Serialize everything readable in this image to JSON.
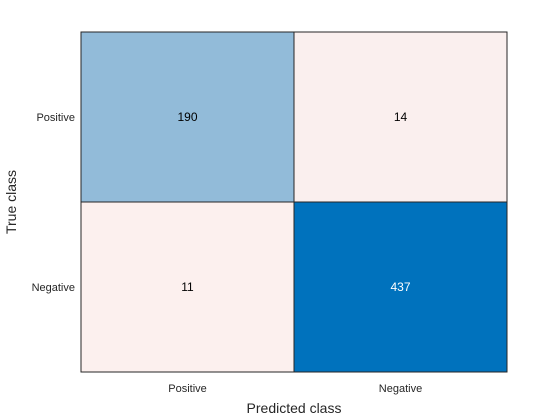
{
  "chart_data": {
    "type": "heatmap",
    "title": "",
    "xlabel": "Predicted class",
    "ylabel": "True class",
    "x_categories": [
      "Positive",
      "Negative"
    ],
    "y_categories": [
      "Positive",
      "Negative"
    ],
    "values": [
      [
        190,
        14
      ],
      [
        11,
        437
      ]
    ],
    "colors": {
      "low": "#fcf0ee",
      "high": "#0072bd",
      "text_dark": "#000000",
      "text_light": "#ffffff",
      "grid_line": "#262626"
    },
    "grid": false
  }
}
